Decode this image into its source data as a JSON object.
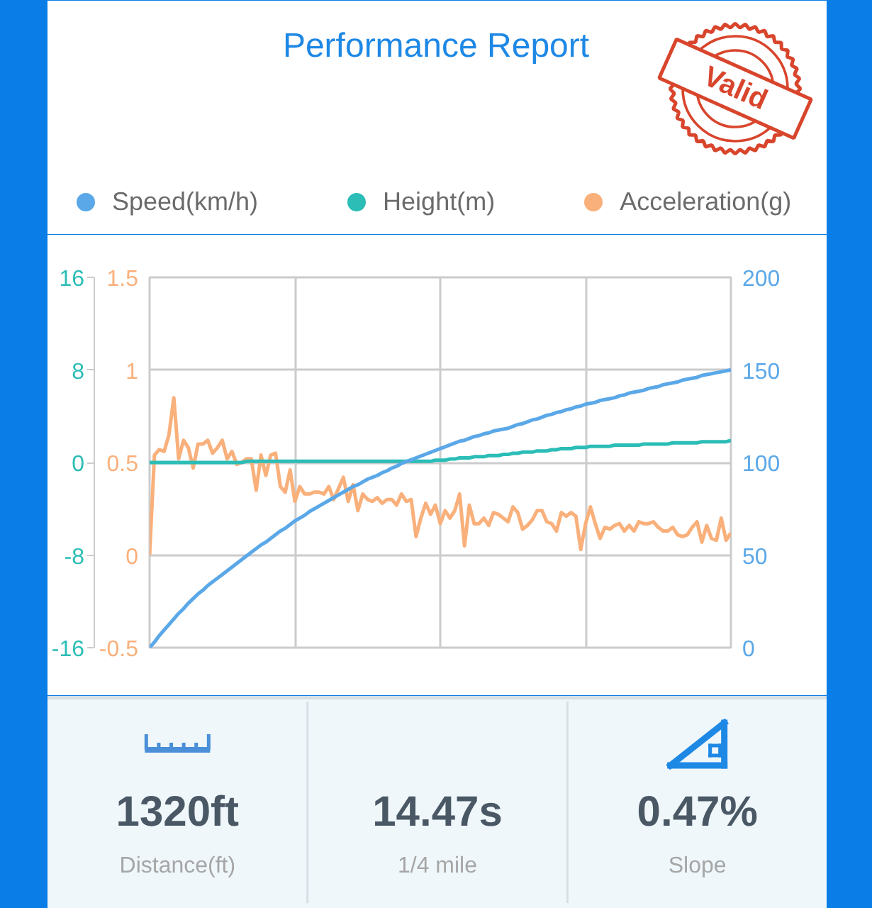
{
  "chart_data": [
    {
      "type": "line",
      "title": "Performance Report",
      "annotations": [
        "Valid"
      ],
      "categories": [
        null,
        null,
        null,
        null,
        null,
        null,
        null,
        null,
        null,
        null,
        null,
        null,
        null,
        null,
        null,
        null,
        null,
        null,
        null,
        null,
        null,
        null,
        null,
        null,
        null,
        null,
        null,
        null,
        null,
        null,
        null,
        null,
        null,
        null,
        null,
        null,
        null,
        null,
        null,
        null,
        null,
        null,
        null,
        null,
        null,
        null,
        null,
        null,
        null,
        null,
        null,
        null,
        null,
        null,
        null,
        null,
        null,
        null,
        null,
        null,
        null,
        null,
        null,
        null,
        null,
        null,
        null,
        null,
        null,
        null,
        null,
        null,
        null,
        null,
        null,
        null,
        null,
        null,
        null,
        null,
        null,
        null,
        null,
        null,
        null,
        null,
        null,
        null,
        null,
        null,
        null,
        null,
        null,
        null,
        null,
        null,
        null,
        null,
        null,
        null,
        null,
        null,
        null,
        null,
        null,
        null,
        null,
        null,
        null,
        null,
        null,
        null,
        null,
        null,
        null,
        null,
        null,
        null,
        null,
        null,
        null
      ],
      "series": [
        {
          "name": "Speed(km/h)",
          "color": "#5ba8e8",
          "axis": "y2",
          "values": [
            0,
            3,
            6.5,
            9.5,
            12.5,
            15.5,
            18.5,
            21,
            24,
            26.5,
            29,
            31,
            33.5,
            35.5,
            37.5,
            39.5,
            41.5,
            43.5,
            45.5,
            47.5,
            49.5,
            51.5,
            53.5,
            55.5,
            57,
            59,
            61,
            63,
            64.5,
            66.5,
            68.5,
            70,
            71.5,
            73.5,
            75,
            76.5,
            78,
            79.5,
            81,
            82.5,
            84,
            85.5,
            87,
            88,
            89.5,
            91,
            92,
            93,
            94.5,
            95.5,
            97,
            98,
            99.5,
            100.5,
            101.5,
            102.5,
            103.5,
            104.5,
            105.5,
            106.5,
            107.5,
            108.5,
            109.5,
            110.5,
            111.5,
            112,
            113,
            114,
            114.5,
            115.5,
            116,
            117,
            117.5,
            118,
            118.5,
            119.5,
            120.5,
            121,
            122,
            123,
            123.5,
            124.5,
            125.5,
            126,
            127,
            127.5,
            128.5,
            129,
            130,
            130.5,
            131.5,
            132,
            132.5,
            133.5,
            134,
            134.5,
            135,
            136,
            136.5,
            137.5,
            138,
            138.5,
            139,
            140,
            140.5,
            141,
            142,
            142.5,
            143,
            143.5,
            144.5,
            145,
            145.5,
            146,
            147,
            147.5,
            148,
            148.5,
            149,
            149.5,
            150
          ]
        },
        {
          "name": "Height(m)",
          "color": "#2bbdb6",
          "axis": "y3",
          "values": [
            0,
            0,
            0,
            0,
            0,
            0,
            0,
            0,
            0,
            0,
            0,
            0,
            0,
            0,
            0,
            0,
            0,
            0,
            0,
            0,
            0.1,
            0.1,
            0.1,
            0.1,
            0.1,
            0.1,
            0.1,
            0.1,
            0.1,
            0.1,
            0.1,
            0.1,
            0.1,
            0.1,
            0.1,
            0.1,
            0.1,
            0.1,
            0.1,
            0.1,
            0.1,
            0.1,
            0.1,
            0.1,
            0.1,
            0.1,
            0.1,
            0.1,
            0.1,
            0.1,
            0.1,
            0.1,
            0.1,
            0.1,
            0.1,
            0.1,
            0.1,
            0.1,
            0.1,
            0.2,
            0.2,
            0.2,
            0.3,
            0.3,
            0.4,
            0.4,
            0.4,
            0.5,
            0.5,
            0.5,
            0.6,
            0.6,
            0.6,
            0.7,
            0.7,
            0.8,
            0.8,
            0.9,
            0.9,
            0.9,
            1.0,
            1.0,
            1.0,
            1.1,
            1.1,
            1.2,
            1.2,
            1.2,
            1.3,
            1.3,
            1.3,
            1.4,
            1.4,
            1.4,
            1.4,
            1.4,
            1.5,
            1.5,
            1.5,
            1.5,
            1.5,
            1.5,
            1.6,
            1.6,
            1.6,
            1.6,
            1.6,
            1.6,
            1.7,
            1.7,
            1.7,
            1.7,
            1.7,
            1.7,
            1.8,
            1.8,
            1.8,
            1.8,
            1.8,
            1.8,
            1.9
          ]
        },
        {
          "name": "Acceleration(g)",
          "color": "#f9b07b",
          "values": [
            0,
            0.54,
            0.57,
            0.56,
            0.65,
            0.85,
            0.52,
            0.62,
            0.58,
            0.47,
            0.6,
            0.6,
            0.62,
            0.55,
            0.58,
            0.62,
            0.52,
            0.56,
            0.49,
            0.5,
            0.52,
            0.52,
            0.35,
            0.54,
            0.43,
            0.54,
            0.55,
            0.37,
            0.34,
            0.46,
            0.29,
            0.37,
            0.33,
            0.33,
            0.34,
            0.34,
            0.33,
            0.37,
            0.3,
            0.36,
            0.42,
            0.29,
            0.38,
            0.24,
            0.33,
            0.3,
            0.29,
            0.31,
            0.28,
            0.3,
            0.3,
            0.27,
            0.33,
            0.29,
            0.3,
            0.1,
            0.2,
            0.28,
            0.22,
            0.27,
            0.17,
            0.24,
            0.2,
            0.24,
            0.33,
            0.05,
            0.27,
            0.17,
            0.17,
            0.2,
            0.16,
            0.23,
            0.22,
            0.2,
            0.18,
            0.26,
            0.23,
            0.14,
            0.16,
            0.19,
            0.24,
            0.24,
            0.18,
            0.17,
            0.13,
            0.23,
            0.21,
            0.23,
            0.21,
            0.03,
            0.17,
            0.26,
            0.17,
            0.09,
            0.15,
            0.14,
            0.16,
            0.17,
            0.13,
            0.16,
            0.13,
            0.18,
            0.17,
            0.17,
            0.18,
            0.15,
            0.13,
            0.13,
            0.15,
            0.11,
            0.1,
            0.11,
            0.15,
            0.18,
            0.07,
            0.16,
            0.09,
            0.08,
            0.2,
            0.08,
            0.12
          ]
        }
      ],
      "ylim": [
        -0.5,
        1.5
      ],
      "yticks": [
        -0.5,
        0,
        0.5,
        1,
        1.5
      ],
      "y2lim": [
        0,
        200
      ],
      "y2ticks": [
        0,
        50,
        100,
        150,
        200
      ],
      "y3lim": [
        -16,
        16
      ],
      "y3ticks": [
        -16,
        -8,
        0,
        8,
        16
      ],
      "grid": true,
      "legend": "top",
      "tick_labels": "y"
    },
    {
      "type": "other",
      "categories": [
        "Distance(ft)",
        "1/4 mile",
        "Slope"
      ],
      "value_labels": [
        "1320ft",
        "14.47s",
        "0.47%"
      ]
    }
  ]
}
